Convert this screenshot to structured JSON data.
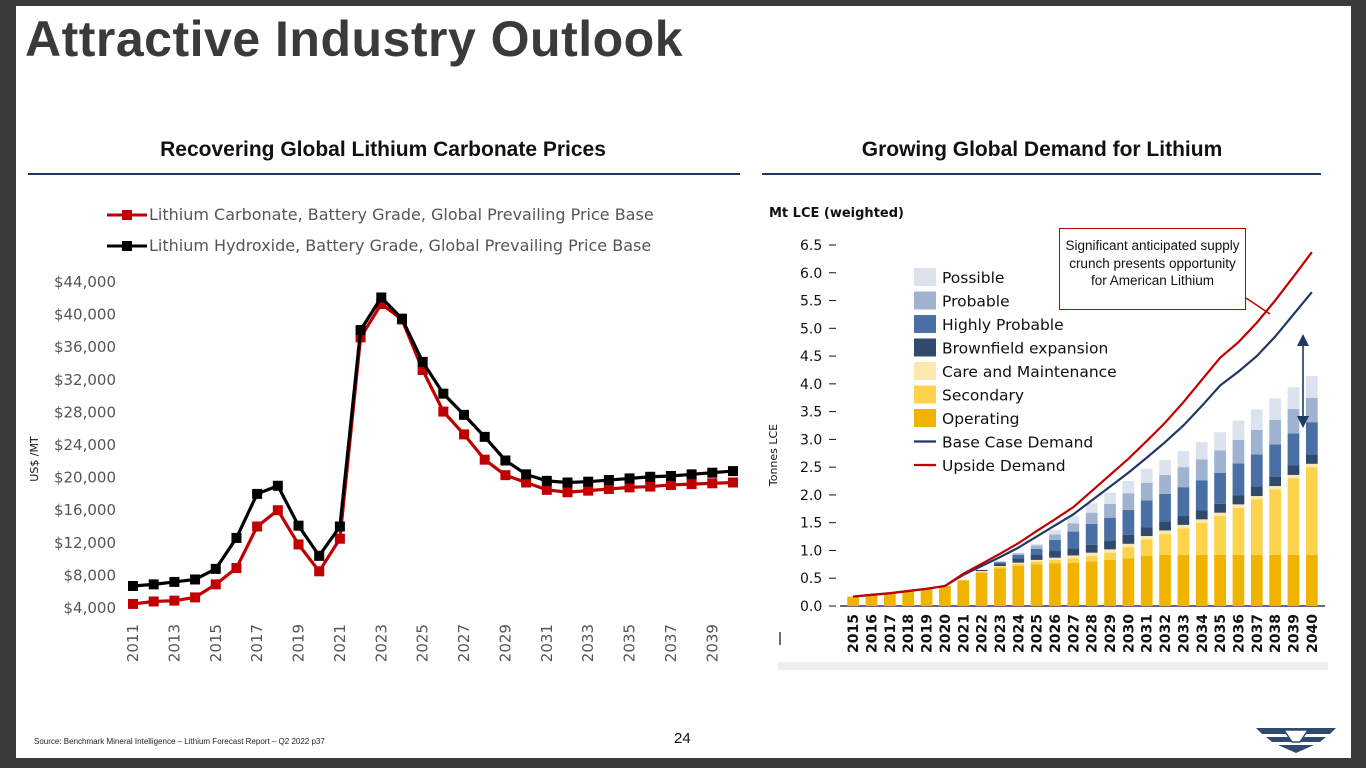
{
  "slide": {
    "title": "Attractive Industry Outlook",
    "left_section_title": "Recovering Global Lithium Carbonate Prices",
    "right_section_title": "Growing Global Demand for Lithium",
    "source": "Source: Benchmark Mineral Intelligence – Lithium Forecast Report – Q2 2022 p37",
    "page_number": "24",
    "logo_icon": "american-lithium-wing-logo"
  },
  "colors": {
    "rule": "#1f3864",
    "carbonate": "#c00000",
    "hydroxide": "#000000",
    "operating": "#f0b400",
    "secondary": "#fcd34a",
    "care_maintenance": "#fde9b0",
    "brownfield": "#2f4a6d",
    "highly_probable": "#4a6fa5",
    "probable": "#9fb3d1",
    "possible": "#dde3ee",
    "base_demand": "#1f3864",
    "upside_demand": "#c00000"
  },
  "chart_data": [
    {
      "type": "line",
      "title": "Recovering Global Lithium Carbonate Prices",
      "ylabel": "US$ /MT",
      "xlabel": "",
      "ylim": [
        4000,
        44000
      ],
      "yticks": [
        4000,
        8000,
        12000,
        16000,
        20000,
        24000,
        28000,
        32000,
        36000,
        40000,
        44000
      ],
      "ytick_labels": [
        "$4,000",
        "$8,000",
        "$12,000",
        "$16,000",
        "$20,000",
        "$24,000",
        "$28,000",
        "$32,000",
        "$36,000",
        "$40,000",
        "$44,000"
      ],
      "x": [
        2011,
        2012,
        2013,
        2014,
        2015,
        2016,
        2017,
        2018,
        2019,
        2020,
        2021,
        2022,
        2023,
        2024,
        2025,
        2026,
        2027,
        2028,
        2029,
        2030,
        2031,
        2032,
        2033,
        2034,
        2035,
        2036,
        2037,
        2038,
        2039,
        2040
      ],
      "xtick_labels": [
        "2011",
        "2013",
        "2015",
        "2017",
        "2019",
        "2021",
        "2023",
        "2025",
        "2027",
        "2029",
        "2031",
        "2033",
        "2035",
        "2037",
        "2039"
      ],
      "legend_position": "top",
      "series": [
        {
          "name": "Lithium Carbonate, Battery Grade, Global Prevailing Price  Base",
          "values": [
            4500,
            4800,
            4900,
            5300,
            6900,
            8900,
            14000,
            16000,
            11800,
            8500,
            12500,
            37200,
            41300,
            39400,
            33200,
            28100,
            25300,
            22200,
            20300,
            19400,
            18500,
            18200,
            18400,
            18600,
            18800,
            18900,
            19100,
            19200,
            19300,
            19400
          ]
        },
        {
          "name": "Lithium Hydroxide, Battery Grade, Global Prevailing Price  Base",
          "values": [
            6700,
            6900,
            7200,
            7500,
            8800,
            12600,
            18000,
            19000,
            14100,
            10400,
            14000,
            38100,
            42100,
            39500,
            34200,
            30300,
            27700,
            25000,
            22100,
            20400,
            19600,
            19400,
            19500,
            19700,
            19900,
            20100,
            20200,
            20400,
            20600,
            20800
          ]
        }
      ]
    },
    {
      "type": "bar",
      "stacked": true,
      "title": "Growing Global Demand for Lithium",
      "unit_label": "Mt LCE (weighted)",
      "ylabel": "Tonnes LCE",
      "ylim": [
        0,
        6.5
      ],
      "yticks": [
        "0.0",
        "0.5",
        "1.0",
        "1.5",
        "2.0",
        "2.5",
        "3.0",
        "3.5",
        "4.0",
        "4.5",
        "5.0",
        "5.5",
        "6.0",
        "6.5"
      ],
      "categories": [
        "2015",
        "2016",
        "2017",
        "2018",
        "2019",
        "2020",
        "2021",
        "2022",
        "2023",
        "2024",
        "2025",
        "2026",
        "2027",
        "2028",
        "2029",
        "2030",
        "2031",
        "2032",
        "2033",
        "2034",
        "2035",
        "2036",
        "2037",
        "2038",
        "2039",
        "2040"
      ],
      "legend_position": "top-left",
      "series": [
        {
          "name": "Operating",
          "values": [
            0.17,
            0.2,
            0.23,
            0.27,
            0.31,
            0.36,
            0.46,
            0.6,
            0.68,
            0.72,
            0.75,
            0.77,
            0.78,
            0.8,
            0.83,
            0.86,
            0.9,
            0.92,
            0.92,
            0.92,
            0.92,
            0.92,
            0.92,
            0.92,
            0.92,
            0.92
          ]
        },
        {
          "name": "Secondary",
          "values": [
            0,
            0,
            0,
            0,
            0,
            0,
            0.01,
            0.02,
            0.03,
            0.04,
            0.05,
            0.06,
            0.08,
            0.1,
            0.13,
            0.2,
            0.3,
            0.38,
            0.48,
            0.58,
            0.7,
            0.85,
            1.0,
            1.18,
            1.38,
            1.58
          ]
        },
        {
          "name": "Care and Maintenance",
          "values": [
            0,
            0,
            0,
            0,
            0,
            0,
            0,
            0.01,
            0.01,
            0.02,
            0.03,
            0.04,
            0.05,
            0.06,
            0.06,
            0.06,
            0.06,
            0.06,
            0.06,
            0.06,
            0.06,
            0.06,
            0.06,
            0.06,
            0.06,
            0.06
          ]
        },
        {
          "name": "Brownfield expansion",
          "values": [
            0,
            0,
            0,
            0,
            0,
            0,
            0,
            0.02,
            0.05,
            0.08,
            0.1,
            0.12,
            0.13,
            0.14,
            0.15,
            0.16,
            0.16,
            0.16,
            0.16,
            0.16,
            0.16,
            0.16,
            0.17,
            0.17,
            0.17,
            0.17
          ]
        },
        {
          "name": "Highly Probable",
          "values": [
            0,
            0,
            0,
            0,
            0,
            0,
            0,
            0,
            0.02,
            0.06,
            0.1,
            0.2,
            0.3,
            0.38,
            0.42,
            0.45,
            0.48,
            0.5,
            0.52,
            0.54,
            0.56,
            0.58,
            0.58,
            0.58,
            0.58,
            0.58
          ]
        },
        {
          "name": "Probable",
          "values": [
            0,
            0,
            0,
            0,
            0,
            0,
            0,
            0,
            0.01,
            0.03,
            0.06,
            0.1,
            0.15,
            0.2,
            0.25,
            0.3,
            0.32,
            0.34,
            0.36,
            0.38,
            0.4,
            0.42,
            0.44,
            0.44,
            0.44,
            0.44
          ]
        },
        {
          "name": "Possible",
          "values": [
            0,
            0,
            0,
            0,
            0,
            0,
            0,
            0,
            0,
            0.01,
            0.03,
            0.08,
            0.13,
            0.17,
            0.2,
            0.22,
            0.25,
            0.27,
            0.29,
            0.31,
            0.33,
            0.35,
            0.37,
            0.39,
            0.39,
            0.39
          ]
        }
      ],
      "lines": [
        {
          "name": "Base Case Demand",
          "values": [
            0.17,
            0.2,
            0.23,
            0.27,
            0.31,
            0.36,
            0.56,
            0.72,
            0.88,
            1.05,
            1.25,
            1.45,
            1.65,
            1.9,
            2.15,
            2.4,
            2.67,
            2.95,
            3.25,
            3.6,
            3.97,
            4.22,
            4.5,
            4.85,
            5.25,
            5.65
          ]
        },
        {
          "name": "Upside Demand",
          "values": [
            0.17,
            0.2,
            0.23,
            0.27,
            0.31,
            0.36,
            0.58,
            0.76,
            0.94,
            1.13,
            1.35,
            1.56,
            1.78,
            2.07,
            2.36,
            2.65,
            2.97,
            3.3,
            3.67,
            4.07,
            4.47,
            4.75,
            5.1,
            5.5,
            5.93,
            6.37
          ]
        }
      ],
      "annotation": "Significant anticipated supply crunch presents opportunity for American Lithium"
    }
  ]
}
